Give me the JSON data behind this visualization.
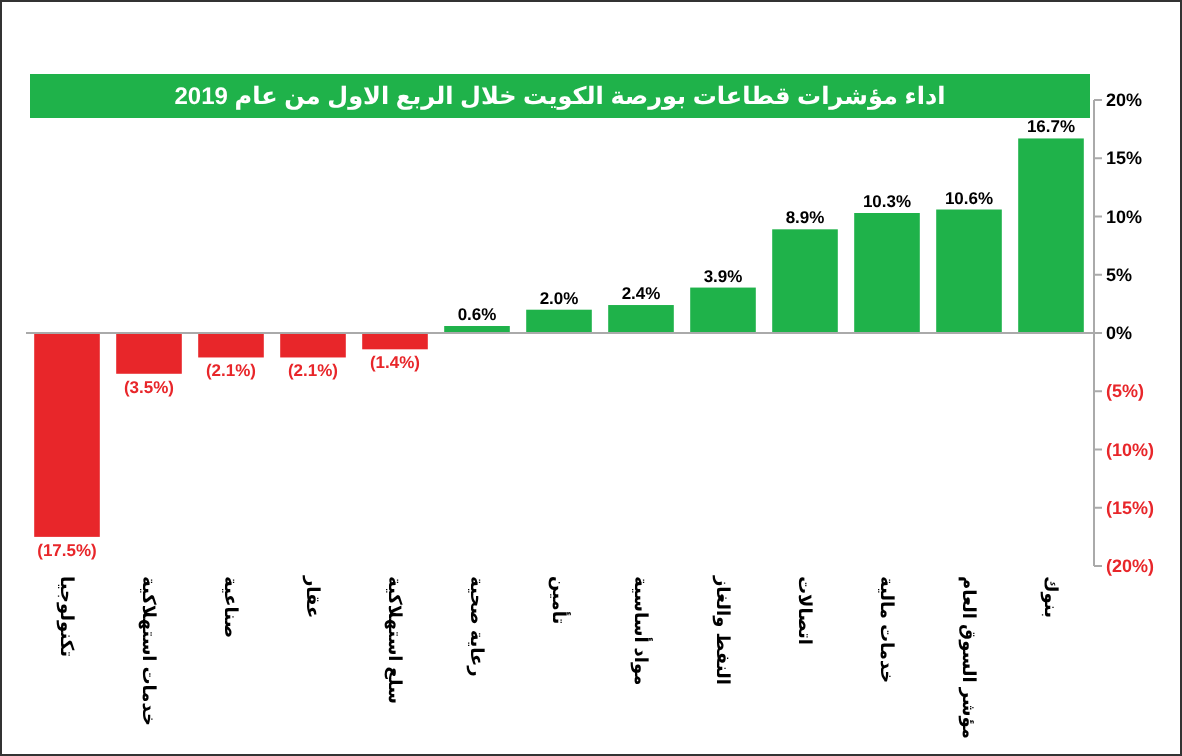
{
  "chart_data": {
    "type": "bar",
    "title": "اداء مؤشرات قطاعات بورصة الكويت خلال الربع الاول من عام  2019",
    "categories": [
      "تكنولوجيا",
      "خدمات استهلاكية",
      "صناعية",
      "عقار",
      "سلع استهلاكية",
      "رعاية صحية",
      "تأمين",
      "مواد أساسية",
      "النفط والغاز",
      "اتصالات",
      "خدمات مالية",
      "مؤشر السوق العام",
      "بنوك"
    ],
    "values": [
      -17.5,
      -3.5,
      -2.1,
      -2.1,
      -1.4,
      0.6,
      2.0,
      2.4,
      3.9,
      8.9,
      10.3,
      10.6,
      16.7
    ],
    "colors": [
      "#e8262a",
      "#e8262a",
      "#e8262a",
      "#e8262a",
      "#e8262a",
      "#1fb24a",
      "#1fb24a",
      "#1fb24a",
      "#1fb24a",
      "#1fb24a",
      "#1fb24a",
      "#1fb24a",
      "#1fb24a"
    ],
    "value_labels": [
      "(17.5%)",
      "(3.5%)",
      "(2.1%)",
      "(2.1%)",
      "(1.4%)",
      "0.6%",
      "2.0%",
      "2.4%",
      "3.9%",
      "8.9%",
      "10.3%",
      "10.6%",
      "16.7%"
    ],
    "ylim": [
      -20,
      20
    ],
    "yticks": [
      {
        "value": -20,
        "label": "(20%)"
      },
      {
        "value": -15,
        "label": "(15%)"
      },
      {
        "value": -10,
        "label": "(10%)"
      },
      {
        "value": -5,
        "label": "(5%)"
      },
      {
        "value": 0,
        "label": "0%"
      },
      {
        "value": 5,
        "label": "5%"
      },
      {
        "value": 10,
        "label": "10%"
      },
      {
        "value": 15,
        "label": "15%"
      },
      {
        "value": 20,
        "label": "20%"
      }
    ]
  }
}
